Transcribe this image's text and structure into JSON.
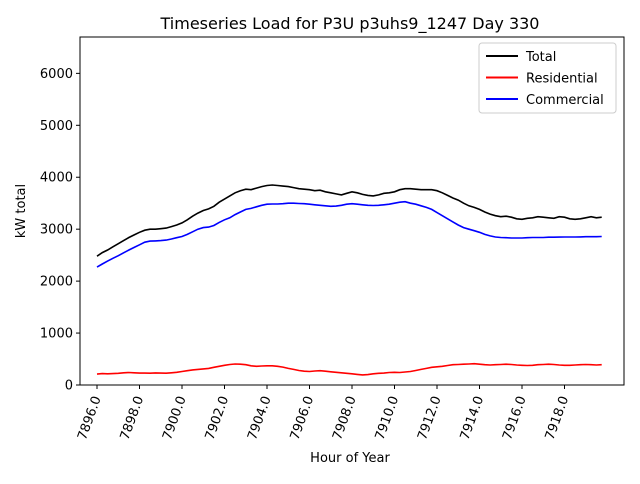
{
  "chart_data": {
    "type": "line",
    "title": "Timeseries Load for P3U p3uhs9_1247  Day 330",
    "xlabel": "Hour of Year",
    "ylabel": "kW total",
    "xlim": [
      7895.2,
      7920.8
    ],
    "ylim": [
      0,
      6700
    ],
    "grid": false,
    "legend_position": "top-right",
    "x_ticks": [
      7896,
      7898,
      7900,
      7902,
      7904,
      7906,
      7908,
      7910,
      7912,
      7914,
      7916,
      7918
    ],
    "x_tick_labels": [
      "7896.0",
      "7898.0",
      "7900.0",
      "7902.0",
      "7904.0",
      "7906.0",
      "7908.0",
      "7910.0",
      "7912.0",
      "7914.0",
      "7916.0",
      "7918.0"
    ],
    "y_ticks": [
      0,
      1000,
      2000,
      3000,
      4000,
      5000,
      6000
    ],
    "y_tick_labels": [
      "0",
      "1000",
      "2000",
      "3000",
      "4000",
      "5000",
      "6000"
    ],
    "x": [
      7896.0,
      7896.25,
      7896.5,
      7896.75,
      7897.0,
      7897.25,
      7897.5,
      7897.75,
      7898.0,
      7898.25,
      7898.5,
      7898.75,
      7899.0,
      7899.25,
      7899.5,
      7899.75,
      7900.0,
      7900.25,
      7900.5,
      7900.75,
      7901.0,
      7901.25,
      7901.5,
      7901.75,
      7902.0,
      7902.25,
      7902.5,
      7902.75,
      7903.0,
      7903.25,
      7903.5,
      7903.75,
      7904.0,
      7904.25,
      7904.5,
      7904.75,
      7905.0,
      7905.25,
      7905.5,
      7905.75,
      7906.0,
      7906.25,
      7906.5,
      7906.75,
      7907.0,
      7907.25,
      7907.5,
      7907.75,
      7908.0,
      7908.25,
      7908.5,
      7908.75,
      7909.0,
      7909.25,
      7909.5,
      7909.75,
      7910.0,
      7910.25,
      7910.5,
      7910.75,
      7911.0,
      7911.25,
      7911.5,
      7911.75,
      7912.0,
      7912.25,
      7912.5,
      7912.75,
      7913.0,
      7913.25,
      7913.5,
      7913.75,
      7914.0,
      7914.25,
      7914.5,
      7914.75,
      7915.0,
      7915.25,
      7915.5,
      7915.75,
      7916.0,
      7916.25,
      7916.5,
      7916.75,
      7917.0,
      7917.25,
      7917.5,
      7917.75,
      7918.0,
      7918.25,
      7918.5,
      7918.75,
      7919.0,
      7919.25,
      7919.5,
      7919.75
    ],
    "series": [
      {
        "name": "Total",
        "color": "#000000",
        "values": [
          2480,
          2550,
          2600,
          2660,
          2720,
          2780,
          2840,
          2890,
          2940,
          2980,
          3000,
          3000,
          3010,
          3020,
          3050,
          3080,
          3120,
          3180,
          3250,
          3310,
          3360,
          3390,
          3440,
          3520,
          3580,
          3640,
          3700,
          3740,
          3770,
          3760,
          3790,
          3820,
          3840,
          3850,
          3840,
          3830,
          3820,
          3800,
          3780,
          3770,
          3760,
          3740,
          3750,
          3720,
          3700,
          3680,
          3660,
          3690,
          3720,
          3700,
          3670,
          3650,
          3640,
          3660,
          3690,
          3700,
          3720,
          3760,
          3780,
          3780,
          3770,
          3760,
          3760,
          3760,
          3740,
          3700,
          3650,
          3600,
          3560,
          3500,
          3450,
          3420,
          3380,
          3330,
          3290,
          3260,
          3240,
          3250,
          3230,
          3200,
          3190,
          3210,
          3220,
          3240,
          3230,
          3220,
          3210,
          3240,
          3230,
          3200,
          3190,
          3200,
          3220,
          3240,
          3220,
          3230
        ]
      },
      {
        "name": "Residential",
        "color": "#ff0000",
        "values": [
          210,
          220,
          215,
          220,
          225,
          235,
          240,
          235,
          230,
          230,
          228,
          232,
          230,
          228,
          235,
          245,
          260,
          275,
          290,
          300,
          310,
          320,
          340,
          360,
          380,
          395,
          405,
          400,
          390,
          370,
          360,
          365,
          370,
          370,
          360,
          345,
          320,
          300,
          280,
          265,
          260,
          270,
          275,
          265,
          255,
          245,
          235,
          225,
          215,
          205,
          195,
          200,
          215,
          225,
          230,
          240,
          245,
          240,
          250,
          260,
          280,
          300,
          320,
          340,
          350,
          360,
          375,
          390,
          395,
          400,
          405,
          410,
          400,
          390,
          385,
          390,
          395,
          400,
          395,
          385,
          380,
          375,
          380,
          390,
          395,
          400,
          395,
          385,
          380,
          380,
          385,
          390,
          395,
          390,
          385,
          390
        ]
      },
      {
        "name": "Commercial",
        "color": "#0000ff",
        "values": [
          2270,
          2330,
          2385,
          2440,
          2490,
          2545,
          2600,
          2650,
          2700,
          2750,
          2770,
          2775,
          2780,
          2790,
          2810,
          2835,
          2860,
          2900,
          2950,
          3000,
          3030,
          3040,
          3070,
          3130,
          3180,
          3220,
          3280,
          3330,
          3380,
          3400,
          3430,
          3460,
          3480,
          3485,
          3485,
          3490,
          3500,
          3500,
          3495,
          3490,
          3480,
          3470,
          3460,
          3450,
          3440,
          3445,
          3460,
          3480,
          3490,
          3480,
          3470,
          3460,
          3455,
          3460,
          3470,
          3480,
          3500,
          3520,
          3530,
          3500,
          3480,
          3450,
          3420,
          3380,
          3320,
          3260,
          3200,
          3140,
          3080,
          3030,
          3000,
          2970,
          2940,
          2900,
          2870,
          2850,
          2840,
          2835,
          2830,
          2830,
          2830,
          2835,
          2840,
          2840,
          2840,
          2845,
          2845,
          2848,
          2850,
          2850,
          2850,
          2852,
          2855,
          2855,
          2855,
          2860
        ]
      }
    ]
  }
}
